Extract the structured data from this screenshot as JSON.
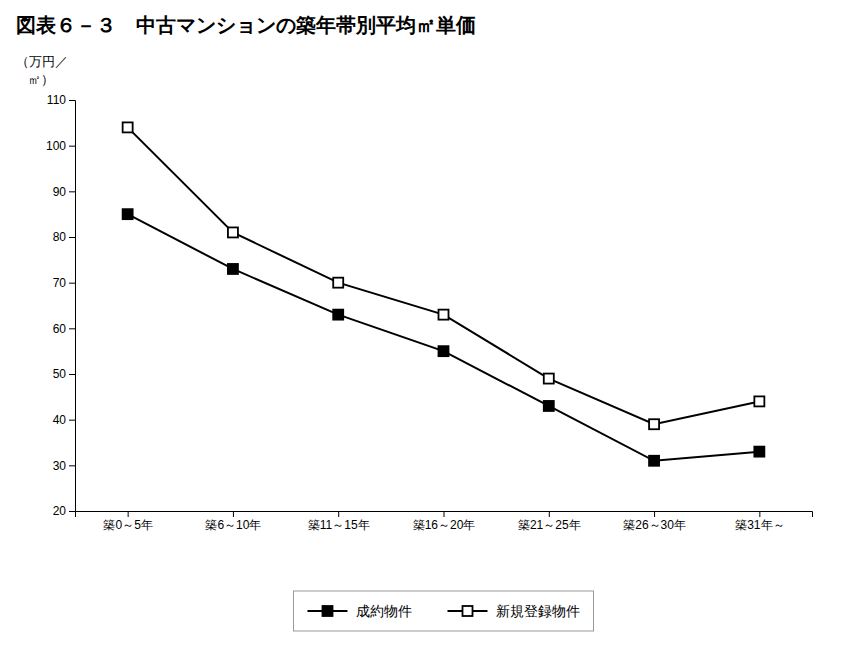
{
  "chart_data": {
    "type": "line",
    "title": "図表６－３　中古マンションの築年帯別平均㎡単価",
    "ylabel": [
      "（万円／",
      "㎡）"
    ],
    "categories": [
      "築0～5年",
      "築6～10年",
      "築11～15年",
      "築16～20年",
      "築21～25年",
      "築26～30年",
      "築31年～"
    ],
    "series": [
      {
        "name": "成約物件",
        "color": "#000000",
        "marker": "square",
        "line_style": "solid",
        "values": [
          85,
          73,
          63,
          55,
          43,
          31,
          33
        ]
      },
      {
        "name": "新規登録物件",
        "color": "#000000",
        "marker": "square-open",
        "line_style": "solid",
        "values": [
          104,
          81,
          70,
          63,
          49,
          39,
          44
        ]
      }
    ],
    "ylim": [
      20,
      110
    ],
    "yticks": [
      20,
      30,
      40,
      50,
      60,
      70,
      80,
      90,
      100,
      110
    ],
    "grid": false,
    "legend": "bottom"
  }
}
